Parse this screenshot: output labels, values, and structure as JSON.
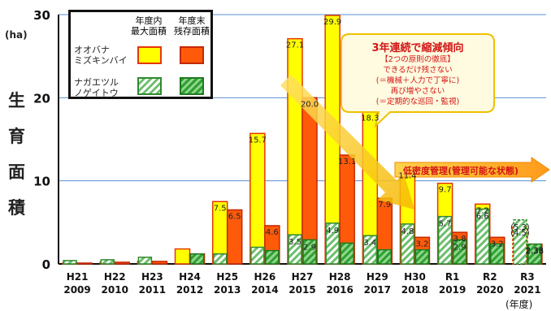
{
  "chart_data": {
    "type": "bar",
    "ylabel": "生育面積",
    "yunit": "(ha)",
    "xunit": "(年度)",
    "ylim": [
      0,
      30
    ],
    "yticks": [
      "0",
      "10",
      "20",
      "30"
    ],
    "grid": true,
    "categories": [
      {
        "era": "H21",
        "year": "2009"
      },
      {
        "era": "H22",
        "year": "2010"
      },
      {
        "era": "H23",
        "year": "2011"
      },
      {
        "era": "H24",
        "year": "2012"
      },
      {
        "era": "H25",
        "year": "2013"
      },
      {
        "era": "H26",
        "year": "2014"
      },
      {
        "era": "H27",
        "year": "2015"
      },
      {
        "era": "H28",
        "year": "2016"
      },
      {
        "era": "H29",
        "year": "2017"
      },
      {
        "era": "H30",
        "year": "2018"
      },
      {
        "era": "R1",
        "year": "2019"
      },
      {
        "era": "R2",
        "year": "2020"
      },
      {
        "era": "R3",
        "year": "2021"
      }
    ],
    "series": [
      {
        "key": "omax",
        "color": "#ffff00",
        "values": [
          0.1,
          0.2,
          0.3,
          1.8,
          7.5,
          15.7,
          27.1,
          29.9,
          18.3,
          11.4,
          9.7,
          7.2,
          4.5
        ],
        "labels": [
          "",
          "",
          "",
          "",
          "7.5",
          "15.7",
          "27.1",
          "29.9",
          "18.3",
          "11.4",
          "9.7",
          "7.2",
          "(4.5)"
        ]
      },
      {
        "key": "orem",
        "color": "#ff5a0a",
        "values": [
          0.1,
          0.2,
          0.3,
          1.2,
          6.5,
          4.6,
          20.0,
          13.1,
          7.9,
          3.2,
          3.8,
          3.2,
          2.38
        ],
        "labels": [
          "",
          "",
          "",
          "",
          "6.5",
          "4.6",
          "20.0",
          "13.1",
          "7.9",
          "3.2",
          "3.8",
          "3.2",
          "2.38"
        ]
      },
      {
        "key": "nmax",
        "color": "#6cbf6c",
        "values": [
          0.4,
          0.5,
          0.8,
          0.0,
          1.2,
          2.0,
          3.5,
          4.9,
          3.4,
          4.8,
          5.7,
          6.6,
          5.3
        ],
        "labels": [
          "",
          "",
          "",
          "",
          "",
          "",
          "3.5",
          "4.9",
          "3.4",
          "4.8",
          "5.7",
          "6.6",
          "(5.3)"
        ]
      },
      {
        "key": "nrem",
        "color": "#2fa02f",
        "values": [
          0.0,
          0.0,
          0.0,
          1.2,
          0.0,
          1.6,
          2.9,
          2.5,
          1.7,
          1.7,
          2.9,
          2.4,
          2.38
        ],
        "labels": [
          "",
          "",
          "",
          "",
          "",
          "",
          "2.9",
          "",
          "",
          "",
          "2.9",
          "",
          "2.38"
        ]
      }
    ]
  },
  "legend": {
    "col_max": "年度内\n最大面積",
    "col_remain": "年度末\n残存面積",
    "species1": "オオバナ\nミズキンバイ",
    "species2": "ナガエツル\nノゲイトウ"
  },
  "annotation": {
    "title": "3年連続で縮減傾向",
    "lines": [
      "【2つの原則の徹底】",
      "できるだけ残さない",
      "(＝機械＋人力で丁寧に)",
      "再び増やさない",
      "(＝定期的な巡回・監視)"
    ]
  },
  "management": "低密度管理(管理可能な状態)"
}
